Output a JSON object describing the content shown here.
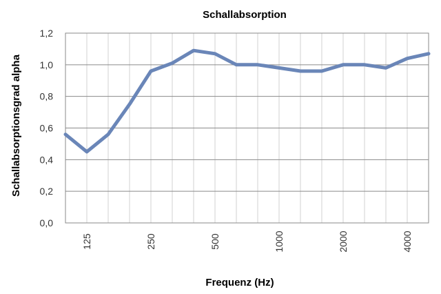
{
  "chart_data": {
    "type": "line",
    "title": "Schallabsorption",
    "xlabel": "Frequenz (Hz)",
    "ylabel": "Schallabsorptionsgrad alpha",
    "x": [
      100,
      125,
      160,
      200,
      250,
      315,
      400,
      500,
      630,
      800,
      1000,
      1250,
      1600,
      2000,
      2500,
      3150,
      4000,
      5000
    ],
    "x_tick_labels": [
      "125",
      "250",
      "500",
      "1000",
      "2000",
      "4000"
    ],
    "y_tick_labels": [
      "0,0",
      "0,2",
      "0,4",
      "0,6",
      "0,8",
      "1,0",
      "1,2"
    ],
    "ylim": [
      0,
      1.2
    ],
    "grid": true,
    "series": [
      {
        "values": [
          0.56,
          0.45,
          0.56,
          0.75,
          0.96,
          1.01,
          1.09,
          1.07,
          1.0,
          1.0,
          0.98,
          0.96,
          0.96,
          1.0,
          1.0,
          0.98,
          1.04,
          1.07
        ],
        "color": "#6a86b8"
      }
    ]
  }
}
